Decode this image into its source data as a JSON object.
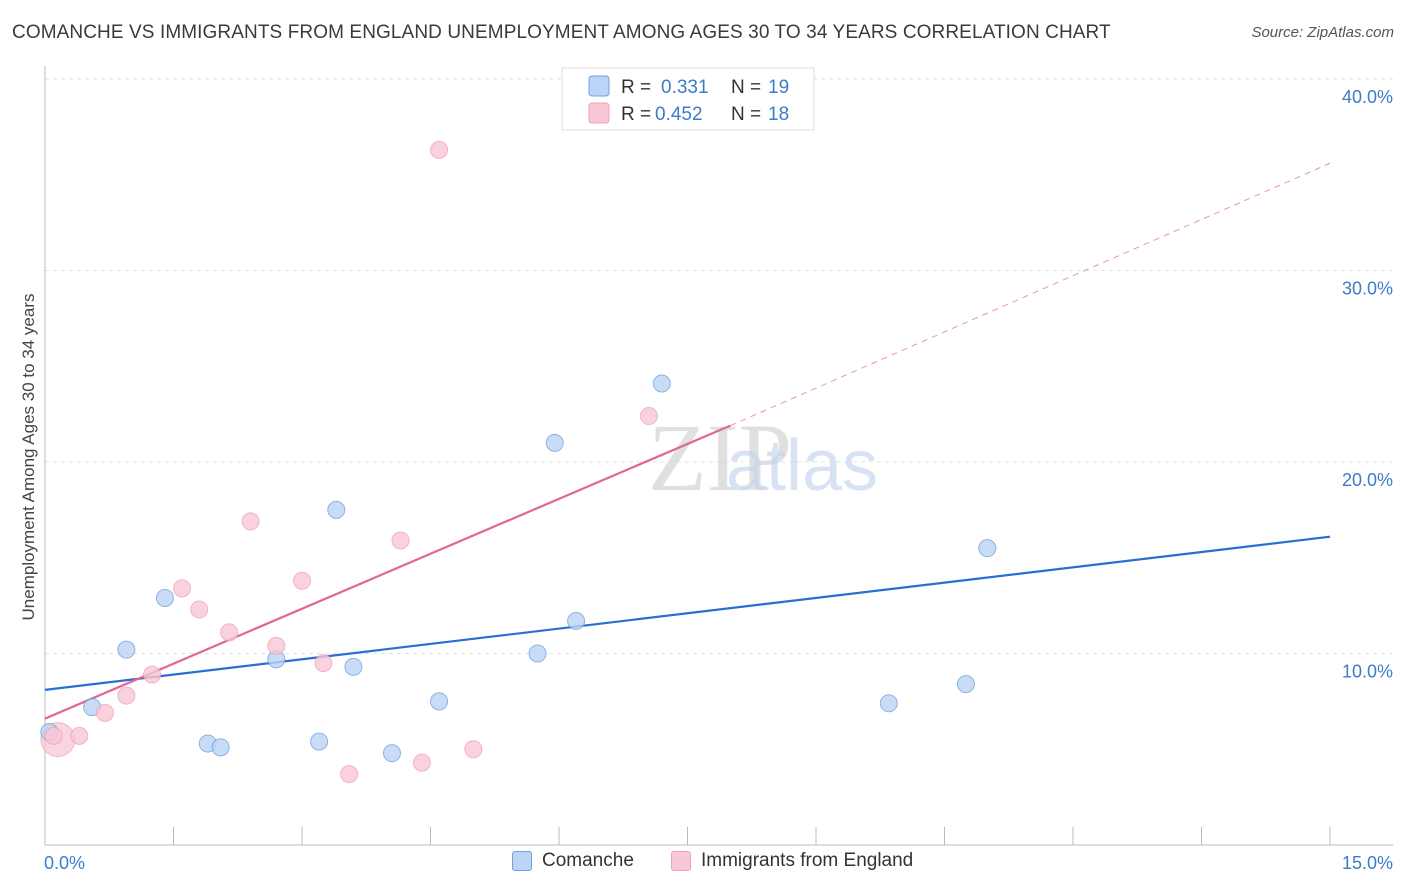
{
  "chart_data": {
    "type": "scatter",
    "title": "COMANCHE VS IMMIGRANTS FROM ENGLAND UNEMPLOYMENT AMONG AGES 30 TO 34 YEARS CORRELATION CHART",
    "source": "Source: ZipAtlas.com",
    "xlabel": "",
    "ylabel": "Unemployment Among Ages 30 to 34 years",
    "xlim": [
      0,
      15
    ],
    "ylim": [
      0,
      40
    ],
    "x_tick_labels": [
      "0.0%",
      "15.0%"
    ],
    "y_ticks": [
      10,
      20,
      30,
      40
    ],
    "y_tick_labels": [
      "10.0%",
      "20.0%",
      "30.0%",
      "40.0%"
    ],
    "grid": true,
    "watermark": "ZIPatlas",
    "series": [
      {
        "name": "Comanche",
        "color": "#6fa0e0",
        "fill": "#bcd4f5",
        "line_color": "#2a6fd0",
        "R": "0.331",
        "N": "19",
        "points": [
          {
            "x": 0.05,
            "y": 5.9
          },
          {
            "x": 0.55,
            "y": 7.2
          },
          {
            "x": 0.95,
            "y": 10.2
          },
          {
            "x": 1.4,
            "y": 12.9
          },
          {
            "x": 1.9,
            "y": 5.3
          },
          {
            "x": 2.05,
            "y": 5.1
          },
          {
            "x": 2.7,
            "y": 9.7
          },
          {
            "x": 3.2,
            "y": 5.4
          },
          {
            "x": 3.4,
            "y": 17.5
          },
          {
            "x": 3.6,
            "y": 9.3
          },
          {
            "x": 4.05,
            "y": 4.8
          },
          {
            "x": 4.6,
            "y": 7.5
          },
          {
            "x": 5.75,
            "y": 10.0
          },
          {
            "x": 5.95,
            "y": 21.0
          },
          {
            "x": 6.2,
            "y": 11.7
          },
          {
            "x": 7.2,
            "y": 24.1
          },
          {
            "x": 9.85,
            "y": 7.4
          },
          {
            "x": 10.75,
            "y": 8.4
          },
          {
            "x": 11.0,
            "y": 15.5
          }
        ],
        "trend": {
          "x0": 0.0,
          "y0": 8.1,
          "x1": 15.0,
          "y1": 16.1
        }
      },
      {
        "name": "Immigrants from England",
        "color": "#f0a0b8",
        "fill": "#f8c8d6",
        "line_color": "#e06890",
        "R": "0.452",
        "N": "18",
        "points": [
          {
            "x": 0.1,
            "y": 5.7
          },
          {
            "x": 0.4,
            "y": 5.7
          },
          {
            "x": 0.7,
            "y": 6.9
          },
          {
            "x": 0.95,
            "y": 7.8
          },
          {
            "x": 1.25,
            "y": 8.9
          },
          {
            "x": 1.6,
            "y": 13.4
          },
          {
            "x": 1.8,
            "y": 12.3
          },
          {
            "x": 2.15,
            "y": 11.1
          },
          {
            "x": 2.4,
            "y": 16.9
          },
          {
            "x": 2.7,
            "y": 10.4
          },
          {
            "x": 3.0,
            "y": 13.8
          },
          {
            "x": 3.25,
            "y": 9.5
          },
          {
            "x": 3.55,
            "y": 3.7
          },
          {
            "x": 4.15,
            "y": 15.9
          },
          {
            "x": 4.4,
            "y": 4.3
          },
          {
            "x": 4.6,
            "y": 36.3
          },
          {
            "x": 5.0,
            "y": 5.0
          },
          {
            "x": 7.05,
            "y": 22.4
          }
        ],
        "trend": {
          "x0": 0.0,
          "y0": 6.6,
          "x1": 8.0,
          "y1": 21.9
        },
        "trend_dashed": {
          "x0": 8.0,
          "y0": 21.9,
          "x1": 15.0,
          "y1": 35.6
        }
      }
    ]
  },
  "legend_top": {
    "r_label": "R =",
    "n_label": "N ="
  }
}
